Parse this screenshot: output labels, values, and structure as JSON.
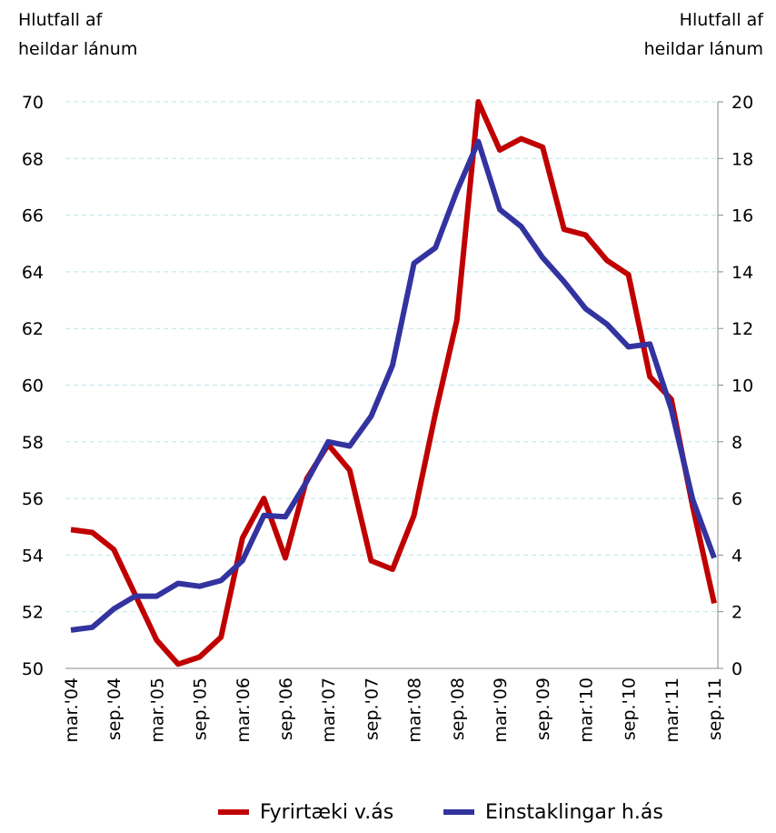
{
  "chart_data": {
    "type": "line",
    "ylabel": [
      "Hlutfall af",
      "heildar lánum"
    ],
    "y2label": [
      "Hlutfall af",
      "heildar lánum"
    ],
    "categories": [
      "mar.'04",
      null,
      "sep.'04",
      null,
      "mar.'05",
      null,
      "sep.'05",
      null,
      "mar.'06",
      null,
      "sep.'06",
      null,
      "mar.'07",
      null,
      "sep.'07",
      null,
      "mar.'08",
      null,
      "sep.'08",
      null,
      "mar.'09",
      null,
      "sep.'09",
      null,
      "mar.'10",
      null,
      "sep.'10",
      null,
      "mar.'11",
      null,
      "sep.'11"
    ],
    "series": [
      {
        "name": "Fyrirtæki v.ás",
        "color": "#c00000",
        "axis": "y",
        "values": [
          54.9,
          54.8,
          54.2,
          52.6,
          51.0,
          50.15,
          50.4,
          51.1,
          54.6,
          56.0,
          53.9,
          56.7,
          57.9,
          57.0,
          53.8,
          53.5,
          55.4,
          59.0,
          62.3,
          70.0,
          68.3,
          68.7,
          68.4,
          65.5,
          65.3,
          64.4,
          63.9,
          60.3,
          59.5,
          55.7,
          52.3
        ]
      },
      {
        "name": "Einstaklingar h.ás",
        "color": "#3333a0",
        "axis": "y2",
        "values": [
          1.35,
          1.45,
          2.1,
          2.55,
          2.55,
          3.0,
          2.9,
          3.1,
          3.8,
          5.4,
          5.35,
          6.6,
          8.0,
          7.85,
          8.9,
          10.7,
          14.3,
          14.85,
          16.85,
          18.6,
          16.2,
          15.6,
          14.5,
          13.65,
          12.7,
          12.15,
          11.35,
          11.45,
          9.15,
          5.95,
          3.9
        ]
      }
    ],
    "ylim": [
      50,
      70
    ],
    "yticks": [
      50,
      52,
      54,
      56,
      58,
      60,
      62,
      64,
      66,
      68,
      70
    ],
    "y2lim": [
      0,
      20
    ],
    "y2ticks": [
      0,
      2,
      4,
      6,
      8,
      10,
      12,
      14,
      16,
      18,
      20
    ],
    "grid": true,
    "legend": "bottom"
  }
}
